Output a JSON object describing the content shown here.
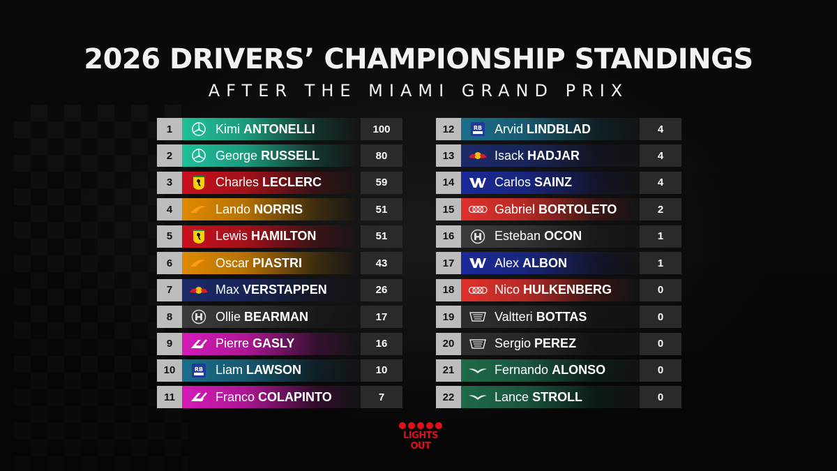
{
  "header": {
    "title": "2026 DRIVERS’ CHAMPIONSHIP STANDINGS",
    "subtitle": "AFTER THE MIAMI GRAND PRIX"
  },
  "brand": {
    "text": "LIGHTS OUT",
    "color": "#e0101a"
  },
  "teams": {
    "mercedes": {
      "color": "#1fbf9a",
      "icon": "mercedes-star-icon"
    },
    "ferrari": {
      "color": "#c8111d",
      "icon": "ferrari-horse-icon"
    },
    "mclaren": {
      "color": "#e08a00",
      "icon": "mclaren-swoosh-icon"
    },
    "redbull": {
      "color": "#1a2a6a",
      "icon": "redbull-bulls-icon"
    },
    "haas": {
      "color": "#3a3a3a",
      "icon": "haas-logo-icon"
    },
    "alpine": {
      "color": "#d61ab8",
      "icon": "alpine-logo-icon"
    },
    "rb": {
      "color": "#1a6e8a",
      "icon": "racing-bulls-icon"
    },
    "williams": {
      "color": "#1a2a9a",
      "icon": "williams-w-icon"
    },
    "audi": {
      "color": "#e0302a",
      "icon": "audi-rings-icon"
    },
    "cadillac": {
      "color": "#2e2e2e",
      "icon": "cadillac-crest-icon"
    },
    "aston": {
      "color": "#1e6a4a",
      "icon": "aston-martin-wings-icon"
    }
  },
  "standings": [
    {
      "pos": "1",
      "first": "Kimi",
      "last": "ANTONELLI",
      "pts": "100",
      "team": "mercedes"
    },
    {
      "pos": "2",
      "first": "George",
      "last": "RUSSELL",
      "pts": "80",
      "team": "mercedes"
    },
    {
      "pos": "3",
      "first": "Charles",
      "last": "LECLERC",
      "pts": "59",
      "team": "ferrari"
    },
    {
      "pos": "4",
      "first": "Lando",
      "last": "NORRIS",
      "pts": "51",
      "team": "mclaren"
    },
    {
      "pos": "5",
      "first": "Lewis",
      "last": "HAMILTON",
      "pts": "51",
      "team": "ferrari"
    },
    {
      "pos": "6",
      "first": "Oscar",
      "last": "PIASTRI",
      "pts": "43",
      "team": "mclaren"
    },
    {
      "pos": "7",
      "first": "Max",
      "last": "VERSTAPPEN",
      "pts": "26",
      "team": "redbull"
    },
    {
      "pos": "8",
      "first": "Ollie",
      "last": "BEARMAN",
      "pts": "17",
      "team": "haas"
    },
    {
      "pos": "9",
      "first": "Pierre",
      "last": "GASLY",
      "pts": "16",
      "team": "alpine"
    },
    {
      "pos": "10",
      "first": "Liam",
      "last": "LAWSON",
      "pts": "10",
      "team": "rb"
    },
    {
      "pos": "11",
      "first": "Franco",
      "last": "COLAPINTO",
      "pts": "7",
      "team": "alpine"
    },
    {
      "pos": "12",
      "first": "Arvid",
      "last": "LINDBLAD",
      "pts": "4",
      "team": "rb"
    },
    {
      "pos": "13",
      "first": "Isack",
      "last": "HADJAR",
      "pts": "4",
      "team": "redbull"
    },
    {
      "pos": "14",
      "first": "Carlos",
      "last": "SAINZ",
      "pts": "4",
      "team": "williams"
    },
    {
      "pos": "15",
      "first": "Gabriel",
      "last": "BORTOLETO",
      "pts": "2",
      "team": "audi"
    },
    {
      "pos": "16",
      "first": "Esteban",
      "last": "OCON",
      "pts": "1",
      "team": "haas"
    },
    {
      "pos": "17",
      "first": "Alex",
      "last": "ALBON",
      "pts": "1",
      "team": "williams"
    },
    {
      "pos": "18",
      "first": "Nico",
      "last": "HULKENBERG",
      "pts": "0",
      "team": "audi"
    },
    {
      "pos": "19",
      "first": "Valtteri",
      "last": "BOTTAS",
      "pts": "0",
      "team": "cadillac"
    },
    {
      "pos": "20",
      "first": "Sergio",
      "last": "PEREZ",
      "pts": "0",
      "team": "cadillac"
    },
    {
      "pos": "21",
      "first": "Fernando",
      "last": "ALONSO",
      "pts": "0",
      "team": "aston"
    },
    {
      "pos": "22",
      "first": "Lance",
      "last": "STROLL",
      "pts": "0",
      "team": "aston"
    }
  ]
}
